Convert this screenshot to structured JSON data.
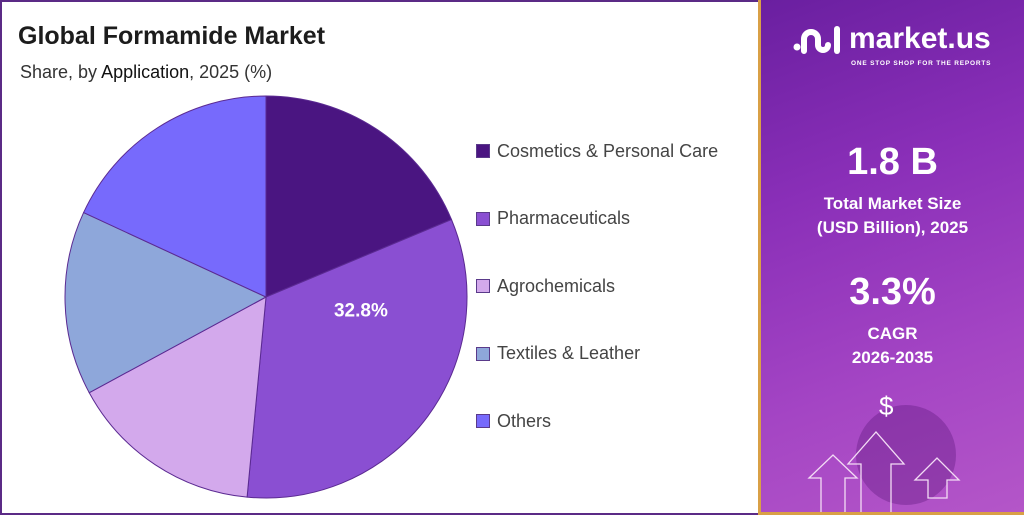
{
  "header": {
    "title": "Global Formamide Market",
    "subtitle_prefix": "Share, by ",
    "subtitle_bold": "Application",
    "subtitle_suffix": ", 2025 (%)"
  },
  "chart_data": {
    "type": "pie",
    "title": "Global Formamide Market",
    "subtitle": "Share, by Application, 2025 (%)",
    "categories": [
      "Cosmetics & Personal Care",
      "Pharmaceuticals",
      "Agrochemicals",
      "Textiles & Leather",
      "Others"
    ],
    "values": [
      18.7,
      32.8,
      15.6,
      14.8,
      18.1
    ],
    "colors": [
      "#4a1581",
      "#8a4fd2",
      "#d3a9ec",
      "#8ea7da",
      "#776afc"
    ],
    "data_labels": [
      null,
      "32.8%",
      null,
      null,
      null
    ],
    "legend_position": "right"
  },
  "panel": {
    "logo_text": "market.us",
    "tagline": "ONE STOP SHOP FOR THE REPORTS",
    "market_size": "1.8 B",
    "market_size_label_1": "Total Market Size",
    "market_size_label_2": "(USD Billion), 2025",
    "cagr": "3.3%",
    "cagr_label_1": "CAGR",
    "cagr_label_2": "2026-2035",
    "dollar": "$"
  }
}
